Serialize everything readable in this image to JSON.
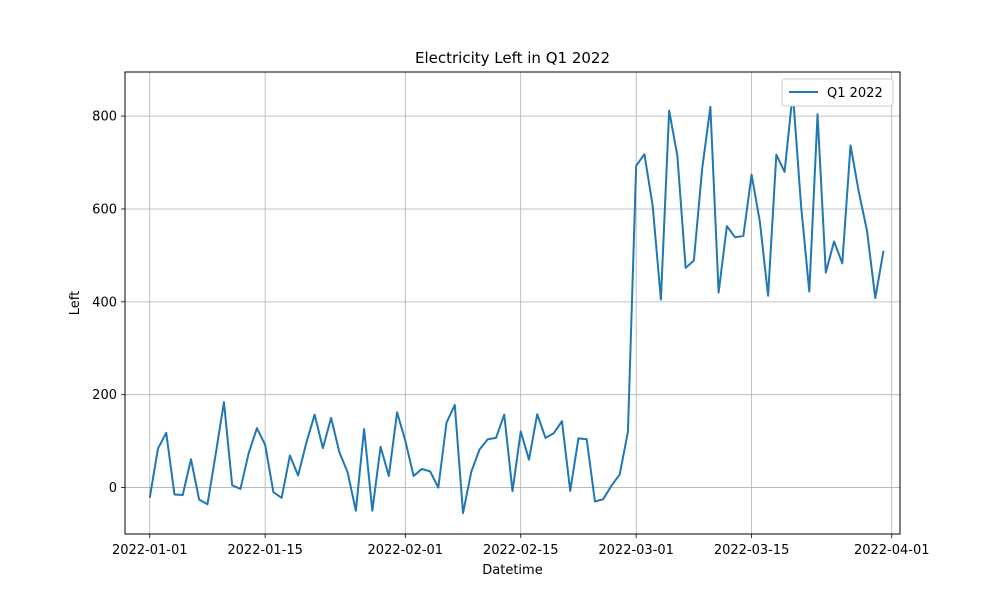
{
  "chart_data": {
    "type": "line",
    "title": "Electricity Left in Q1 2022",
    "xlabel": "Datetime",
    "ylabel": "Left",
    "xlim": [
      "2021-12-29",
      "2022-04-02"
    ],
    "ylim": [
      -100,
      895
    ],
    "grid": true,
    "legend_position": "top-right",
    "x_ticks": [
      "2022-01-01",
      "2022-01-15",
      "2022-02-01",
      "2022-02-15",
      "2022-03-01",
      "2022-03-15",
      "2022-04-01"
    ],
    "y_ticks": [
      0,
      200,
      400,
      600,
      800
    ],
    "series": [
      {
        "name": "Q1 2022",
        "color": "#1f77b4",
        "x": [
          "2022-01-01",
          "2022-01-02",
          "2022-01-03",
          "2022-01-04",
          "2022-01-05",
          "2022-01-06",
          "2022-01-07",
          "2022-01-08",
          "2022-01-09",
          "2022-01-10",
          "2022-01-11",
          "2022-01-12",
          "2022-01-13",
          "2022-01-14",
          "2022-01-15",
          "2022-01-16",
          "2022-01-17",
          "2022-01-18",
          "2022-01-19",
          "2022-01-20",
          "2022-01-21",
          "2022-01-22",
          "2022-01-23",
          "2022-01-24",
          "2022-01-25",
          "2022-01-26",
          "2022-01-27",
          "2022-01-28",
          "2022-01-29",
          "2022-01-30",
          "2022-01-31",
          "2022-02-01",
          "2022-02-02",
          "2022-02-03",
          "2022-02-04",
          "2022-02-05",
          "2022-02-06",
          "2022-02-07",
          "2022-02-08",
          "2022-02-09",
          "2022-02-10",
          "2022-02-11",
          "2022-02-12",
          "2022-02-13",
          "2022-02-14",
          "2022-02-15",
          "2022-02-16",
          "2022-02-17",
          "2022-02-18",
          "2022-02-19",
          "2022-02-20",
          "2022-02-21",
          "2022-02-22",
          "2022-02-23",
          "2022-02-24",
          "2022-02-25",
          "2022-02-26",
          "2022-02-27",
          "2022-02-28",
          "2022-03-01",
          "2022-03-02",
          "2022-03-03",
          "2022-03-04",
          "2022-03-05",
          "2022-03-06",
          "2022-03-07",
          "2022-03-08",
          "2022-03-09",
          "2022-03-10",
          "2022-03-11",
          "2022-03-12",
          "2022-03-13",
          "2022-03-14",
          "2022-03-15",
          "2022-03-16",
          "2022-03-17",
          "2022-03-18",
          "2022-03-19",
          "2022-03-20",
          "2022-03-21",
          "2022-03-22",
          "2022-03-23",
          "2022-03-24",
          "2022-03-25",
          "2022-03-26",
          "2022-03-27",
          "2022-03-28",
          "2022-03-29",
          "2022-03-30",
          "2022-03-31"
        ],
        "values": [
          -22,
          84,
          118,
          -15,
          -16,
          61,
          -26,
          -36,
          72,
          184,
          5,
          -3,
          74,
          128,
          92,
          -10,
          -22,
          69,
          26,
          97,
          157,
          85,
          150,
          76,
          33,
          -50,
          126,
          -50,
          88,
          25,
          162,
          101,
          25,
          40,
          35,
          0,
          140,
          178,
          -55,
          34,
          82,
          104,
          107,
          157,
          -8,
          121,
          60,
          158,
          107,
          117,
          143,
          -7,
          106,
          104,
          -30,
          -25,
          4,
          28,
          120,
          693,
          718,
          607,
          405,
          812,
          714,
          473,
          489,
          686,
          820,
          420,
          563,
          539,
          542,
          674,
          573,
          413,
          717,
          680,
          851,
          607,
          422,
          804,
          463,
          530,
          483,
          737,
          637,
          553,
          408,
          510
        ]
      }
    ]
  }
}
